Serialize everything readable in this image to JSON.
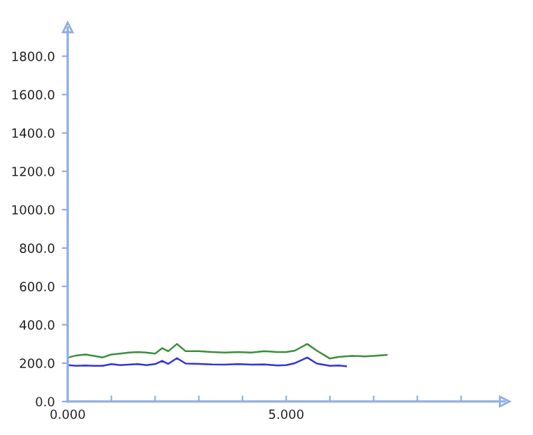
{
  "chart_data": {
    "type": "line",
    "xlim": [
      0,
      10
    ],
    "ylim": [
      0,
      1950
    ],
    "xticks": [
      {
        "value": 0,
        "label": "0.000"
      },
      {
        "value": 1,
        "label": null
      },
      {
        "value": 2,
        "label": null
      },
      {
        "value": 3,
        "label": null
      },
      {
        "value": 4,
        "label": null
      },
      {
        "value": 5,
        "label": "5.000"
      },
      {
        "value": 6,
        "label": null
      },
      {
        "value": 7,
        "label": null
      },
      {
        "value": 8,
        "label": null
      },
      {
        "value": 9,
        "label": null
      }
    ],
    "yticks": [
      {
        "value": 0,
        "label": "0.0"
      },
      {
        "value": 200,
        "label": "200.0"
      },
      {
        "value": 400,
        "label": "400.0"
      },
      {
        "value": 600,
        "label": "600.0"
      },
      {
        "value": 800,
        "label": "800.0"
      },
      {
        "value": 1000,
        "label": "1000.0"
      },
      {
        "value": 1200,
        "label": "1200.0"
      },
      {
        "value": 1400,
        "label": "1400.0"
      },
      {
        "value": 1600,
        "label": "1600.0"
      },
      {
        "value": 1800,
        "label": "1800.0"
      }
    ],
    "grid": false,
    "legend": false,
    "marker": "none",
    "line_style": "solid",
    "series": [
      {
        "color": "#3a8f3a",
        "x": [
          0,
          0.2,
          0.4,
          0.6,
          0.8,
          1.0,
          1.2,
          1.4,
          1.6,
          1.8,
          2.0,
          2.16,
          2.3,
          2.5,
          2.7,
          3.0,
          3.3,
          3.6,
          3.9,
          4.2,
          4.5,
          4.8,
          5.0,
          5.2,
          5.48,
          5.7,
          6.0,
          6.2,
          6.5,
          6.8,
          7.0,
          7.3
        ],
        "values": [
          229,
          240,
          245,
          238,
          230,
          245,
          250,
          255,
          258,
          255,
          250,
          278,
          262,
          300,
          262,
          262,
          258,
          255,
          258,
          255,
          262,
          258,
          258,
          265,
          300,
          265,
          224,
          232,
          238,
          235,
          238,
          243
        ]
      },
      {
        "color": "#3333dd",
        "x": [
          0,
          0.2,
          0.4,
          0.6,
          0.8,
          1.0,
          1.2,
          1.4,
          1.6,
          1.8,
          2.0,
          2.16,
          2.3,
          2.5,
          2.7,
          3.0,
          3.3,
          3.6,
          3.9,
          4.2,
          4.5,
          4.8,
          5.0,
          5.2,
          5.48,
          5.7,
          6.0,
          6.2,
          6.37
        ],
        "values": [
          190,
          186,
          188,
          186,
          186,
          195,
          190,
          192,
          195,
          190,
          195,
          212,
          196,
          226,
          198,
          196,
          193,
          192,
          195,
          192,
          193,
          188,
          190,
          200,
          229,
          198,
          186,
          188,
          184
        ]
      }
    ]
  }
}
